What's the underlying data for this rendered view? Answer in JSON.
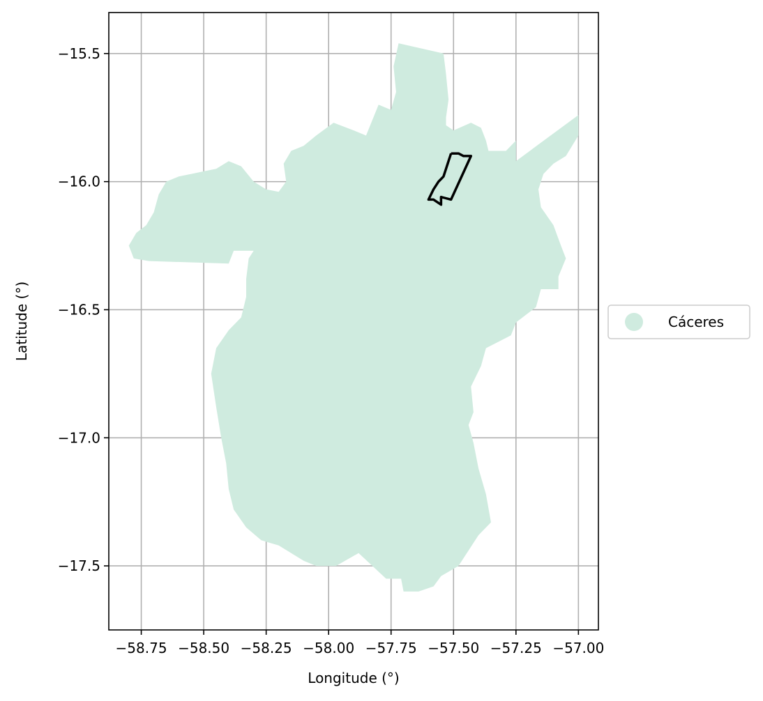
{
  "chart_data": {
    "type": "map",
    "xlabel": "Longitude (°)",
    "ylabel": "Latitude (°)",
    "xlim": [
      -58.88,
      -56.92
    ],
    "ylim": [
      -17.75,
      -15.34
    ],
    "grid": true,
    "xticks": [
      -58.75,
      -58.5,
      -58.25,
      -58.0,
      -57.75,
      -57.5,
      -57.25,
      -57.0
    ],
    "xtick_labels": [
      "−58.75",
      "−58.50",
      "−58.25",
      "−58.00",
      "−57.75",
      "−57.50",
      "−57.25",
      "−57.00"
    ],
    "yticks": [
      -15.5,
      -16.0,
      -16.5,
      -17.0,
      -17.5
    ],
    "ytick_labels": [
      "−15.5",
      "−16.0",
      "−16.5",
      "−17.0",
      "−17.5"
    ],
    "legend": {
      "placement": "right",
      "entries": [
        {
          "label": "Cáceres",
          "color": "#cfebdf"
        }
      ]
    },
    "region": {
      "name": "Cáceres",
      "fill": "#cfebdf",
      "outline": [
        [
          -57.72,
          -15.46
        ],
        [
          -57.54,
          -15.5
        ],
        [
          -57.53,
          -15.58
        ],
        [
          -57.52,
          -15.68
        ],
        [
          -57.53,
          -15.75
        ],
        [
          -57.53,
          -15.78
        ],
        [
          -57.5,
          -15.8
        ],
        [
          -57.43,
          -15.77
        ],
        [
          -57.39,
          -15.79
        ],
        [
          -57.37,
          -15.84
        ],
        [
          -57.36,
          -15.88
        ],
        [
          -57.29,
          -15.88
        ],
        [
          -57.25,
          -15.84
        ],
        [
          -57.25,
          -15.92
        ],
        [
          -57.0,
          -15.74
        ],
        [
          -57.0,
          -15.82
        ],
        [
          -57.05,
          -15.9
        ],
        [
          -57.1,
          -15.93
        ],
        [
          -57.14,
          -15.97
        ],
        [
          -57.16,
          -16.03
        ],
        [
          -57.15,
          -16.1
        ],
        [
          -57.1,
          -16.17
        ],
        [
          -57.07,
          -16.25
        ],
        [
          -57.05,
          -16.3
        ],
        [
          -57.08,
          -16.37
        ],
        [
          -57.08,
          -16.42
        ],
        [
          -57.15,
          -16.42
        ],
        [
          -57.17,
          -16.49
        ],
        [
          -57.25,
          -16.55
        ],
        [
          -57.27,
          -16.6
        ],
        [
          -57.31,
          -16.62
        ],
        [
          -57.37,
          -16.65
        ],
        [
          -57.39,
          -16.72
        ],
        [
          -57.43,
          -16.8
        ],
        [
          -57.42,
          -16.9
        ],
        [
          -57.44,
          -16.95
        ],
        [
          -57.42,
          -17.02
        ],
        [
          -57.4,
          -17.12
        ],
        [
          -57.37,
          -17.22
        ],
        [
          -57.35,
          -17.33
        ],
        [
          -57.4,
          -17.38
        ],
        [
          -57.44,
          -17.44
        ],
        [
          -57.48,
          -17.5
        ],
        [
          -57.55,
          -17.54
        ],
        [
          -57.58,
          -17.58
        ],
        [
          -57.64,
          -17.6
        ],
        [
          -57.7,
          -17.6
        ],
        [
          -57.71,
          -17.55
        ],
        [
          -57.77,
          -17.55
        ],
        [
          -57.88,
          -17.45
        ],
        [
          -57.97,
          -17.5
        ],
        [
          -58.05,
          -17.5
        ],
        [
          -58.1,
          -17.48
        ],
        [
          -58.15,
          -17.45
        ],
        [
          -58.2,
          -17.42
        ],
        [
          -58.27,
          -17.4
        ],
        [
          -58.33,
          -17.35
        ],
        [
          -58.38,
          -17.28
        ],
        [
          -58.4,
          -17.2
        ],
        [
          -58.41,
          -17.1
        ],
        [
          -58.43,
          -17.0
        ],
        [
          -58.45,
          -16.88
        ],
        [
          -58.47,
          -16.75
        ],
        [
          -58.45,
          -16.65
        ],
        [
          -58.4,
          -16.58
        ],
        [
          -58.35,
          -16.53
        ],
        [
          -58.33,
          -16.45
        ],
        [
          -58.33,
          -16.38
        ],
        [
          -58.32,
          -16.3
        ],
        [
          -58.3,
          -16.27
        ],
        [
          -58.38,
          -16.27
        ],
        [
          -58.4,
          -16.32
        ],
        [
          -58.72,
          -16.31
        ],
        [
          -58.78,
          -16.3
        ],
        [
          -58.8,
          -16.25
        ],
        [
          -58.77,
          -16.2
        ],
        [
          -58.73,
          -16.17
        ],
        [
          -58.7,
          -16.12
        ],
        [
          -58.68,
          -16.05
        ],
        [
          -58.65,
          -16.0
        ],
        [
          -58.6,
          -15.98
        ],
        [
          -58.55,
          -15.97
        ],
        [
          -58.5,
          -15.96
        ],
        [
          -58.45,
          -15.95
        ],
        [
          -58.4,
          -15.92
        ],
        [
          -58.35,
          -15.94
        ],
        [
          -58.3,
          -16.0
        ],
        [
          -58.25,
          -16.03
        ],
        [
          -58.2,
          -16.04
        ],
        [
          -58.17,
          -16.0
        ],
        [
          -58.18,
          -15.93
        ],
        [
          -58.15,
          -15.88
        ],
        [
          -58.1,
          -15.86
        ],
        [
          -58.05,
          -15.82
        ],
        [
          -57.98,
          -15.77
        ],
        [
          -57.9,
          -15.8
        ],
        [
          -57.85,
          -15.82
        ],
        [
          -57.8,
          -15.7
        ],
        [
          -57.75,
          -15.72
        ],
        [
          -57.73,
          -15.65
        ],
        [
          -57.74,
          -15.55
        ]
      ]
    },
    "highlight_outline": {
      "stroke": "#000000",
      "points": [
        [
          -57.51,
          -15.89
        ],
        [
          -57.48,
          -15.89
        ],
        [
          -57.46,
          -15.9
        ],
        [
          -57.43,
          -15.9
        ],
        [
          -57.51,
          -16.07
        ],
        [
          -57.55,
          -16.06
        ],
        [
          -57.55,
          -16.09
        ],
        [
          -57.58,
          -16.07
        ],
        [
          -57.6,
          -16.07
        ],
        [
          -57.58,
          -16.03
        ],
        [
          -57.56,
          -16.0
        ],
        [
          -57.54,
          -15.98
        ],
        [
          -57.53,
          -15.95
        ],
        [
          -57.52,
          -15.92
        ],
        [
          -57.51,
          -15.89
        ]
      ]
    }
  }
}
